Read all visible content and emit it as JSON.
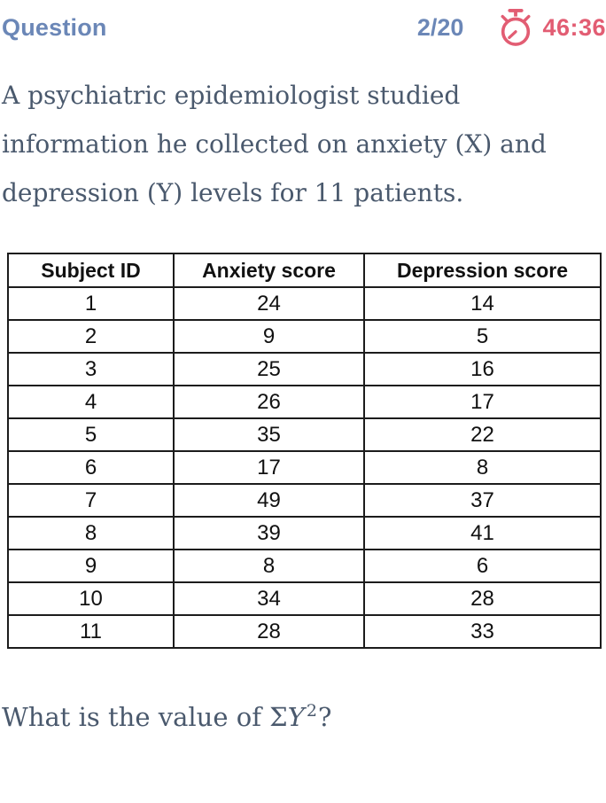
{
  "header": {
    "title": "Question",
    "progress": "2/20",
    "timer": "46:36"
  },
  "colors": {
    "accent_blue": "#6b87b7",
    "timer_red": "#e25d73",
    "body_text": "#4a596d",
    "table_border": "#1c1c1c",
    "table_text": "#111111",
    "background": "#ffffff"
  },
  "question": {
    "body_lines": [
      "A psychiatric epidemiologist studied",
      "information he collected on anxiety (X) and",
      "depression (Y) levels for 11 patients."
    ],
    "prompt": {
      "prefix": "What is the value of ",
      "sigma": "Σ",
      "variable": "Y",
      "exponent": "2",
      "suffix": "?"
    }
  },
  "table": {
    "headers": [
      "Subject ID",
      "Anxiety score",
      "Depression score"
    ],
    "rows": [
      [
        "1",
        "24",
        "14"
      ],
      [
        "2",
        "9",
        "5"
      ],
      [
        "3",
        "25",
        "16"
      ],
      [
        "4",
        "26",
        "17"
      ],
      [
        "5",
        "35",
        "22"
      ],
      [
        "6",
        "17",
        "8"
      ],
      [
        "7",
        "49",
        "37"
      ],
      [
        "8",
        "39",
        "41"
      ],
      [
        "9",
        "8",
        "6"
      ],
      [
        "10",
        "34",
        "28"
      ],
      [
        "11",
        "28",
        "33"
      ]
    ]
  }
}
